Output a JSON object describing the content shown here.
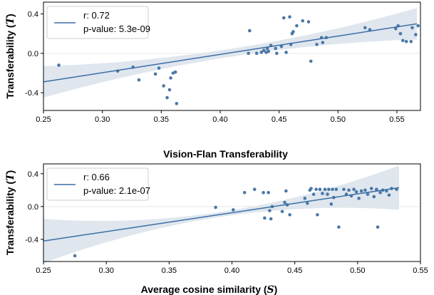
{
  "chart_data": [
    {
      "type": "scatter",
      "title": "",
      "xlabel": "",
      "ylabel": "Transferability (T)",
      "ylabel_main": "Transferability (",
      "ylabel_symbol": "T",
      "ylabel_close": ")",
      "xlim": [
        0.25,
        0.57
      ],
      "ylim": [
        -0.58,
        0.52
      ],
      "xticks": [
        0.25,
        0.3,
        0.35,
        0.4,
        0.45,
        0.5,
        0.55
      ],
      "xtick_labels": [
        "0.25",
        "0.30",
        "0.35",
        "0.40",
        "0.45",
        "0.50",
        "0.55"
      ],
      "yticks": [
        -0.4,
        0.0,
        0.4
      ],
      "ytick_labels": [
        "-0.4",
        "0.0",
        "0.4"
      ],
      "legend": {
        "placement": "top-left",
        "line1": "r: 0.72",
        "line2": "p-value: 5.3e-09"
      },
      "regression": {
        "x": [
          0.25,
          0.567
        ],
        "y": [
          -0.29,
          0.3
        ],
        "band_halfwidth_edge": 0.16,
        "band_halfwidth_center": 0.04
      },
      "colors": {
        "points": "#4a78a6",
        "line": "#3b6ea5",
        "band": "#c9d6e3"
      },
      "points": [
        {
          "x": 0.263,
          "y": -0.12
        },
        {
          "x": 0.313,
          "y": -0.18
        },
        {
          "x": 0.326,
          "y": -0.14
        },
        {
          "x": 0.331,
          "y": -0.27
        },
        {
          "x": 0.345,
          "y": -0.21
        },
        {
          "x": 0.348,
          "y": -0.15
        },
        {
          "x": 0.352,
          "y": -0.33
        },
        {
          "x": 0.355,
          "y": -0.45
        },
        {
          "x": 0.357,
          "y": -0.37
        },
        {
          "x": 0.358,
          "y": -0.25
        },
        {
          "x": 0.36,
          "y": -0.2
        },
        {
          "x": 0.362,
          "y": -0.19
        },
        {
          "x": 0.363,
          "y": -0.51
        },
        {
          "x": 0.424,
          "y": 0.0
        },
        {
          "x": 0.425,
          "y": 0.23
        },
        {
          "x": 0.431,
          "y": 0.0
        },
        {
          "x": 0.435,
          "y": 0.01
        },
        {
          "x": 0.437,
          "y": 0.03
        },
        {
          "x": 0.439,
          "y": 0.01
        },
        {
          "x": 0.44,
          "y": 0.05
        },
        {
          "x": 0.441,
          "y": 0.02
        },
        {
          "x": 0.443,
          "y": 0.08
        },
        {
          "x": 0.447,
          "y": 0.05
        },
        {
          "x": 0.448,
          "y": 0.0
        },
        {
          "x": 0.452,
          "y": 0.07
        },
        {
          "x": 0.454,
          "y": 0.36
        },
        {
          "x": 0.456,
          "y": 0.01
        },
        {
          "x": 0.459,
          "y": 0.37
        },
        {
          "x": 0.46,
          "y": 0.09
        },
        {
          "x": 0.461,
          "y": 0.2
        },
        {
          "x": 0.462,
          "y": 0.22
        },
        {
          "x": 0.465,
          "y": 0.28
        },
        {
          "x": 0.47,
          "y": 0.33
        },
        {
          "x": 0.475,
          "y": 0.32
        },
        {
          "x": 0.477,
          "y": -0.08
        },
        {
          "x": 0.482,
          "y": 0.09
        },
        {
          "x": 0.486,
          "y": 0.16
        },
        {
          "x": 0.487,
          "y": 0.11
        },
        {
          "x": 0.49,
          "y": 0.16
        },
        {
          "x": 0.523,
          "y": 0.26
        },
        {
          "x": 0.527,
          "y": 0.24
        },
        {
          "x": 0.549,
          "y": 0.25
        },
        {
          "x": 0.551,
          "y": 0.28
        },
        {
          "x": 0.553,
          "y": 0.2
        },
        {
          "x": 0.555,
          "y": 0.13
        },
        {
          "x": 0.558,
          "y": 0.12
        },
        {
          "x": 0.562,
          "y": 0.12
        },
        {
          "x": 0.563,
          "y": 0.26
        },
        {
          "x": 0.566,
          "y": 0.19
        },
        {
          "x": 0.568,
          "y": 0.28
        }
      ]
    },
    {
      "type": "scatter",
      "title": "Vision-Flan Transferability",
      "xlabel": "Average cosine similarity (S)",
      "xlabel_main": "Average cosine similarity (",
      "xlabel_symbol": "S",
      "xlabel_close": ")",
      "ylabel": "Transferability (T)",
      "ylabel_main": "Transferability (",
      "ylabel_symbol": "T",
      "ylabel_close": ")",
      "xlim": [
        0.25,
        0.55
      ],
      "ylim": [
        -0.67,
        0.52
      ],
      "xticks": [
        0.25,
        0.3,
        0.35,
        0.4,
        0.45,
        0.5,
        0.55
      ],
      "xtick_labels": [
        "0.25",
        "0.30",
        "0.35",
        "0.40",
        "0.45",
        "0.50",
        "0.55"
      ],
      "yticks": [
        -0.4,
        0.0,
        0.4
      ],
      "ytick_labels": [
        "-0.4",
        "0.0",
        "0.4"
      ],
      "legend": {
        "placement": "top-left",
        "line1": "r: 0.66",
        "line2": "p-value: 2.1e-07"
      },
      "regression": {
        "x": [
          0.25,
          0.533
        ],
        "y": [
          -0.42,
          0.23
        ],
        "band_halfwidth_edge": 0.27,
        "band_halfwidth_center": 0.03
      },
      "colors": {
        "points": "#4a78a6",
        "line": "#3b6ea5",
        "band": "#c9d6e3"
      },
      "points": [
        {
          "x": 0.275,
          "y": -0.6
        },
        {
          "x": 0.387,
          "y": -0.01
        },
        {
          "x": 0.401,
          "y": -0.04
        },
        {
          "x": 0.41,
          "y": 0.17
        },
        {
          "x": 0.418,
          "y": 0.21
        },
        {
          "x": 0.425,
          "y": 0.17
        },
        {
          "x": 0.426,
          "y": -0.14
        },
        {
          "x": 0.429,
          "y": 0.17
        },
        {
          "x": 0.43,
          "y": -0.05
        },
        {
          "x": 0.431,
          "y": -0.15
        },
        {
          "x": 0.432,
          "y": 0.0
        },
        {
          "x": 0.44,
          "y": -0.06
        },
        {
          "x": 0.442,
          "y": 0.05
        },
        {
          "x": 0.443,
          "y": 0.19
        },
        {
          "x": 0.444,
          "y": 0.02
        },
        {
          "x": 0.446,
          "y": -0.1
        },
        {
          "x": 0.458,
          "y": 0.1
        },
        {
          "x": 0.46,
          "y": 0.04
        },
        {
          "x": 0.462,
          "y": 0.2
        },
        {
          "x": 0.463,
          "y": 0.22
        },
        {
          "x": 0.465,
          "y": 0.15
        },
        {
          "x": 0.467,
          "y": 0.21
        },
        {
          "x": 0.468,
          "y": -0.1
        },
        {
          "x": 0.47,
          "y": 0.21
        },
        {
          "x": 0.472,
          "y": 0.16
        },
        {
          "x": 0.474,
          "y": 0.21
        },
        {
          "x": 0.476,
          "y": 0.15
        },
        {
          "x": 0.477,
          "y": 0.21
        },
        {
          "x": 0.479,
          "y": 0.03
        },
        {
          "x": 0.48,
          "y": 0.21
        },
        {
          "x": 0.481,
          "y": 0.11
        },
        {
          "x": 0.483,
          "y": 0.21
        },
        {
          "x": 0.485,
          "y": -0.25
        },
        {
          "x": 0.489,
          "y": 0.21
        },
        {
          "x": 0.491,
          "y": 0.15
        },
        {
          "x": 0.493,
          "y": 0.2
        },
        {
          "x": 0.495,
          "y": 0.13
        },
        {
          "x": 0.497,
          "y": 0.21
        },
        {
          "x": 0.499,
          "y": 0.18
        },
        {
          "x": 0.501,
          "y": 0.1
        },
        {
          "x": 0.503,
          "y": 0.19
        },
        {
          "x": 0.506,
          "y": 0.2
        },
        {
          "x": 0.508,
          "y": 0.15
        },
        {
          "x": 0.511,
          "y": 0.22
        },
        {
          "x": 0.513,
          "y": 0.12
        },
        {
          "x": 0.515,
          "y": 0.21
        },
        {
          "x": 0.516,
          "y": -0.25
        },
        {
          "x": 0.518,
          "y": 0.17
        },
        {
          "x": 0.52,
          "y": 0.2
        },
        {
          "x": 0.523,
          "y": 0.19
        },
        {
          "x": 0.525,
          "y": 0.14
        },
        {
          "x": 0.527,
          "y": 0.22
        },
        {
          "x": 0.531,
          "y": 0.21
        }
      ]
    }
  ]
}
